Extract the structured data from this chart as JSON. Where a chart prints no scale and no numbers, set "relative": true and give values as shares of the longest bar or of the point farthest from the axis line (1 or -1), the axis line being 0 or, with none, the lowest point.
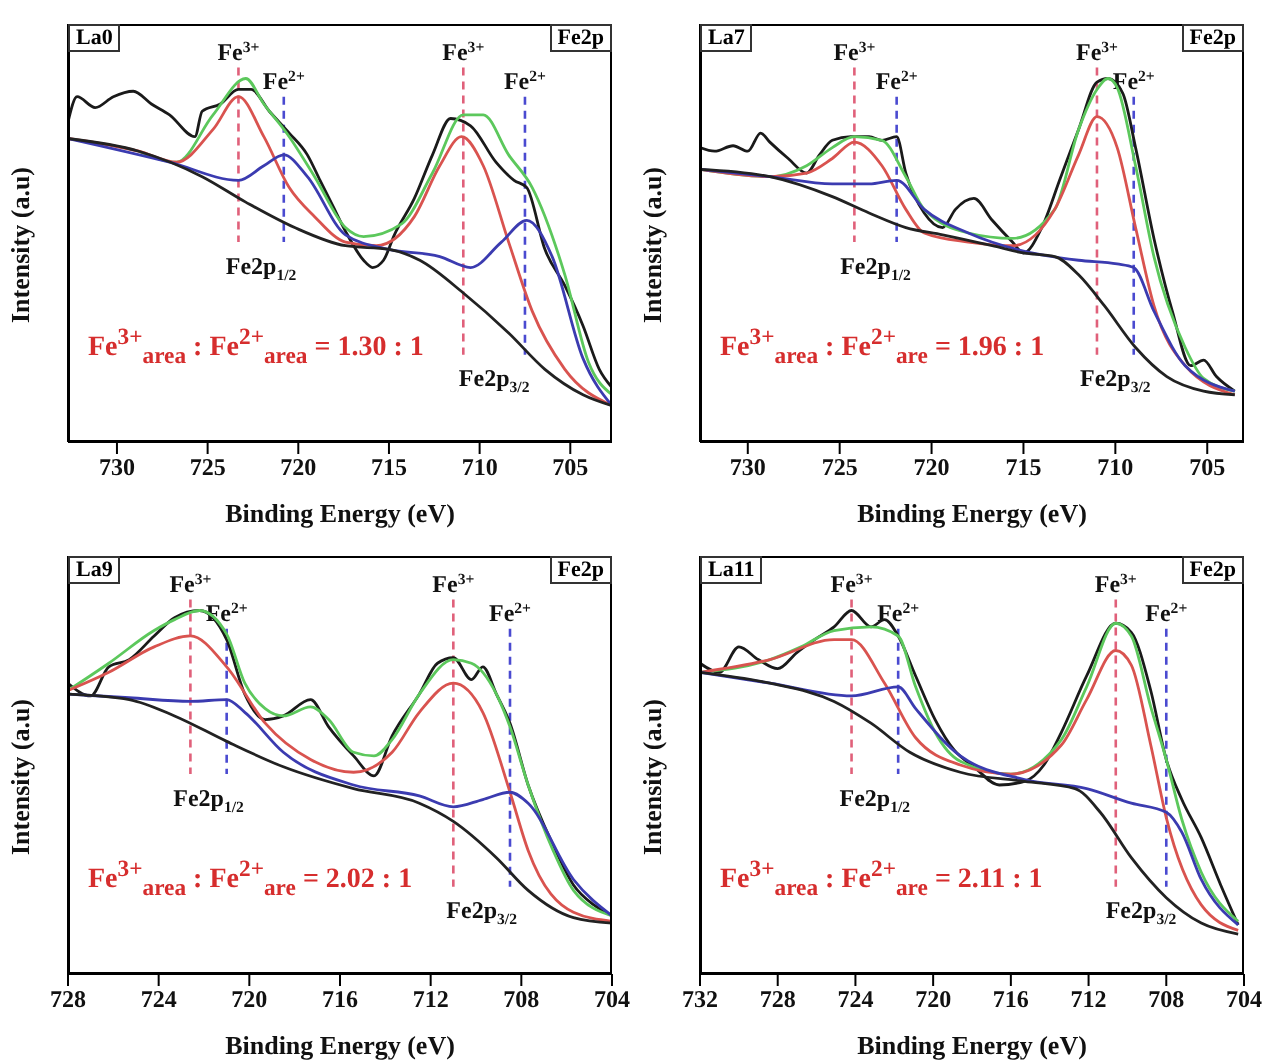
{
  "chart_data": [
    {
      "type": "line",
      "title": "La0",
      "subtitle": "Fe2p",
      "xlabel": "Binding Energy (eV)",
      "ylabel": "Intensity (a.u)",
      "relative": true,
      "xlim": [
        732.7,
        702.7
      ],
      "xticks": [
        730,
        725,
        720,
        715,
        710,
        705
      ],
      "series": [
        {
          "color": "#1a1a1a",
          "x": [
            732.7,
            732.2,
            731.2,
            730.2,
            729.1,
            728.1,
            727.1,
            725.7,
            725.3,
            724.3,
            723.3,
            722.6,
            721.6,
            720.5,
            719.5,
            718.8,
            718.1,
            717.4,
            716.4,
            715.9,
            715.3,
            714.7,
            713.6,
            712.6,
            711.6,
            710.5,
            709.1,
            708.1,
            707.4,
            706.4,
            705.3,
            704.3,
            703.4,
            702.7
          ],
          "values": [
            0.88,
            0.95,
            0.92,
            0.95,
            0.965,
            0.93,
            0.9,
            0.84,
            0.91,
            0.93,
            0.97,
            0.97,
            0.91,
            0.85,
            0.79,
            0.72,
            0.65,
            0.58,
            0.5,
            0.48,
            0.5,
            0.57,
            0.67,
            0.79,
            0.89,
            0.87,
            0.77,
            0.72,
            0.7,
            0.53,
            0.43,
            0.32,
            0.2,
            0.15
          ]
        },
        {
          "color": "#5cc85c",
          "x": [
            728.8,
            726.7,
            724.7,
            722.9,
            721.9,
            720.5,
            719.1,
            717.4,
            716.4,
            714.3,
            712.6,
            710.9,
            709.8,
            708.4,
            707.1,
            705.3,
            704.0,
            702.7
          ],
          "values": [
            0.8,
            0.77,
            0.9,
            1.0,
            0.93,
            0.84,
            0.73,
            0.59,
            0.565,
            0.6,
            0.74,
            0.9,
            0.9,
            0.79,
            0.7,
            0.46,
            0.22,
            0.13
          ]
        },
        {
          "color": "#d9534f",
          "x": [
            732.7,
            728.8,
            726.7,
            724.7,
            723.3,
            721.9,
            720.5,
            719.1,
            717.4,
            715.7,
            713.6,
            712.2,
            711.0,
            709.8,
            708.4,
            707.1,
            705.3,
            702.7
          ],
          "values": [
            0.835,
            0.8,
            0.77,
            0.86,
            0.95,
            0.84,
            0.7,
            0.62,
            0.55,
            0.54,
            0.62,
            0.76,
            0.84,
            0.76,
            0.55,
            0.36,
            0.2,
            0.1
          ]
        },
        {
          "color": "#3b3bb0",
          "x": [
            732.7,
            727.1,
            723.3,
            721.9,
            720.8,
            719.5,
            717.4,
            715.0,
            712.2,
            710.5,
            708.8,
            707.4,
            706.0,
            704.3,
            702.7
          ],
          "values": [
            0.835,
            0.77,
            0.72,
            0.76,
            0.79,
            0.73,
            0.57,
            0.53,
            0.51,
            0.48,
            0.55,
            0.61,
            0.51,
            0.23,
            0.1
          ]
        },
        {
          "color": "#222222",
          "x": [
            732.7,
            728.8,
            725.3,
            722.9,
            720.2,
            717.4,
            715.0,
            713.3,
            710.9,
            708.4,
            706.4,
            704.3,
            702.7
          ],
          "values": [
            0.835,
            0.8,
            0.73,
            0.66,
            0.59,
            0.54,
            0.53,
            0.5,
            0.41,
            0.3,
            0.2,
            0.13,
            0.1
          ]
        }
      ],
      "ref_lines": [
        {
          "axis": "x",
          "value": 723.3,
          "label": "Fe$^{3+}$",
          "color": "#e0607a",
          "line_style": "dashed"
        },
        {
          "axis": "x",
          "value": 720.8,
          "label": "Fe$^{2+}$",
          "color": "#4a4ad0",
          "line_style": "dashed"
        },
        {
          "axis": "x",
          "value": 710.9,
          "label": "Fe$^{3+}$",
          "color": "#e0607a",
          "line_style": "dashed"
        },
        {
          "axis": "x",
          "value": 707.5,
          "label": "Fe$^{2+}$",
          "color": "#4a4ad0",
          "line_style": "dashed"
        }
      ],
      "annotations": [
        "Fe$^{3+}$$_{area}$ : Fe$^{2+}$$_{area}$ = 1.30 : 1",
        "Fe2p$_{1/2}$",
        "Fe2p$_{3/2}$"
      ]
    },
    {
      "type": "line",
      "title": "La7",
      "subtitle": "Fe2p",
      "xlabel": "Binding Energy (eV)",
      "ylabel": "Intensity (a.u)",
      "relative": true,
      "xlim": [
        732.6,
        703.0
      ],
      "xticks": [
        730,
        725,
        720,
        715,
        710,
        705
      ],
      "series": [
        {
          "color": "#1a1a1a",
          "x": [
            732.6,
            731.8,
            730.8,
            730.0,
            729.3,
            728.8,
            727.8,
            726.8,
            726.1,
            725.4,
            724.4,
            723.4,
            722.7,
            721.9,
            721.4,
            720.4,
            719.4,
            718.7,
            717.7,
            716.7,
            715.6,
            715.0,
            714.0,
            713.0,
            712.0,
            711.0,
            710.4,
            709.6,
            708.9,
            707.9,
            706.9,
            705.9,
            705.2,
            704.5,
            703.5
          ],
          "values": [
            0.81,
            0.8,
            0.815,
            0.8,
            0.85,
            0.825,
            0.78,
            0.74,
            0.79,
            0.83,
            0.84,
            0.84,
            0.83,
            0.84,
            0.74,
            0.63,
            0.59,
            0.64,
            0.67,
            0.61,
            0.55,
            0.52,
            0.59,
            0.725,
            0.86,
            0.99,
            1.0,
            0.96,
            0.81,
            0.56,
            0.36,
            0.21,
            0.225,
            0.18,
            0.14
          ]
        },
        {
          "color": "#5cc85c",
          "x": [
            732.6,
            728.8,
            726.8,
            725.4,
            724.2,
            722.7,
            721.4,
            720.4,
            718.0,
            715.6,
            713.3,
            712.0,
            711.0,
            710.4,
            709.9,
            708.9,
            707.9,
            706.2,
            705.2,
            703.5
          ],
          "values": [
            0.75,
            0.73,
            0.76,
            0.81,
            0.84,
            0.83,
            0.73,
            0.64,
            0.575,
            0.56,
            0.64,
            0.86,
            0.97,
            1.0,
            0.975,
            0.76,
            0.51,
            0.26,
            0.175,
            0.14
          ]
        },
        {
          "color": "#d9534f",
          "x": [
            732.6,
            728.8,
            726.8,
            725.4,
            724.2,
            722.7,
            721.4,
            720.4,
            718.0,
            715.6,
            713.3,
            712.0,
            711.0,
            709.9,
            708.9,
            707.9,
            706.2,
            703.5
          ],
          "values": [
            0.75,
            0.73,
            0.74,
            0.78,
            0.825,
            0.76,
            0.64,
            0.575,
            0.55,
            0.54,
            0.64,
            0.79,
            0.895,
            0.81,
            0.59,
            0.375,
            0.21,
            0.13
          ]
        },
        {
          "color": "#3b3bb0",
          "x": [
            732.6,
            728.8,
            725.4,
            723.4,
            721.9,
            720.4,
            718.0,
            715.0,
            712.0,
            709.9,
            709.0,
            707.9,
            706.2,
            703.5
          ],
          "values": [
            0.75,
            0.73,
            0.71,
            0.71,
            0.72,
            0.64,
            0.575,
            0.525,
            0.5,
            0.49,
            0.48,
            0.36,
            0.21,
            0.14
          ]
        },
        {
          "color": "#222222",
          "x": [
            732.6,
            728.8,
            725.4,
            723.4,
            721.4,
            719.4,
            716.7,
            715.0,
            713.3,
            712.0,
            710.6,
            708.9,
            707.2,
            705.2,
            703.5
          ],
          "values": [
            0.75,
            0.73,
            0.675,
            0.63,
            0.59,
            0.57,
            0.54,
            0.52,
            0.51,
            0.46,
            0.375,
            0.26,
            0.18,
            0.14,
            0.13
          ]
        }
      ],
      "ref_lines": [
        {
          "axis": "x",
          "value": 724.2,
          "label": "Fe$^{3+}$",
          "color": "#e0607a",
          "line_style": "dashed"
        },
        {
          "axis": "x",
          "value": 721.9,
          "label": "Fe$^{2+}$",
          "color": "#4a4ad0",
          "line_style": "dashed"
        },
        {
          "axis": "x",
          "value": 711.0,
          "label": "Fe$^{3+}$",
          "color": "#e0607a",
          "line_style": "dashed"
        },
        {
          "axis": "x",
          "value": 709.0,
          "label": "Fe$^{2+}$",
          "color": "#4a4ad0",
          "line_style": "dashed"
        }
      ],
      "annotations": [
        "Fe$^{3+}$$_{area}$ : Fe$^{2+}$$_{are}$ = 1.96 : 1",
        "Fe2p$_{1/2}$",
        "Fe2p$_{3/2}$"
      ]
    },
    {
      "type": "line",
      "title": "La9",
      "subtitle": "Fe2p",
      "xlabel": "Binding Energy (eV)",
      "ylabel": "Intensity (a.u)",
      "relative": true,
      "xlim": [
        728,
        704
      ],
      "xticks": [
        728,
        724,
        720,
        716,
        712,
        708,
        704
      ],
      "series": [
        {
          "color": "#1a1a1a",
          "x": [
            728.0,
            727.0,
            726.2,
            725.3,
            724.2,
            723.3,
            722.2,
            721.0,
            720.2,
            719.3,
            718.5,
            717.3,
            716.5,
            715.4,
            714.5,
            713.7,
            712.5,
            711.7,
            711.0,
            710.2,
            709.7,
            709.1,
            708.5,
            707.7,
            706.6,
            705.7,
            704.8,
            704.0
          ],
          "values": [
            0.8,
            0.765,
            0.845,
            0.865,
            0.93,
            0.98,
            1.0,
            0.92,
            0.77,
            0.7,
            0.71,
            0.755,
            0.68,
            0.6,
            0.545,
            0.655,
            0.77,
            0.855,
            0.87,
            0.81,
            0.845,
            0.77,
            0.69,
            0.52,
            0.355,
            0.245,
            0.19,
            0.16
          ]
        },
        {
          "color": "#5cc85c",
          "x": [
            728.0,
            726.2,
            724.2,
            723.3,
            722.2,
            721.0,
            720.2,
            719.3,
            718.5,
            717.3,
            716.5,
            715.4,
            714.5,
            713.7,
            712.5,
            711.0,
            710.2,
            709.1,
            708.5,
            707.7,
            706.6,
            705.7,
            704.0
          ],
          "values": [
            0.78,
            0.855,
            0.945,
            0.975,
            1.0,
            0.935,
            0.8,
            0.73,
            0.71,
            0.735,
            0.7,
            0.61,
            0.6,
            0.645,
            0.77,
            0.865,
            0.855,
            0.77,
            0.68,
            0.52,
            0.34,
            0.23,
            0.16
          ]
        },
        {
          "color": "#d9534f",
          "x": [
            728.0,
            726.2,
            724.2,
            722.6,
            721.0,
            719.3,
            717.3,
            715.4,
            713.7,
            712.5,
            711.0,
            709.7,
            708.5,
            707.7,
            705.7,
            704.0
          ],
          "values": [
            0.78,
            0.83,
            0.9,
            0.93,
            0.845,
            0.69,
            0.59,
            0.555,
            0.61,
            0.72,
            0.8,
            0.72,
            0.5,
            0.34,
            0.17,
            0.145
          ]
        },
        {
          "color": "#3b3bb0",
          "x": [
            728.0,
            725.3,
            722.6,
            721.0,
            720.2,
            718.5,
            715.4,
            712.5,
            711.0,
            709.7,
            708.5,
            707.7,
            705.7,
            704.0
          ],
          "values": [
            0.77,
            0.76,
            0.75,
            0.755,
            0.72,
            0.61,
            0.52,
            0.49,
            0.46,
            0.48,
            0.5,
            0.47,
            0.26,
            0.16
          ]
        },
        {
          "color": "#222222",
          "x": [
            728.0,
            725.3,
            723.3,
            721.0,
            718.5,
            715.4,
            712.5,
            711.0,
            709.1,
            707.7,
            705.7,
            704.0
          ],
          "values": [
            0.77,
            0.755,
            0.71,
            0.64,
            0.57,
            0.51,
            0.47,
            0.42,
            0.32,
            0.23,
            0.155,
            0.14
          ]
        }
      ],
      "ref_lines": [
        {
          "axis": "x",
          "value": 722.6,
          "label": "Fe$^{3+}$",
          "color": "#e0607a",
          "line_style": "dashed"
        },
        {
          "axis": "x",
          "value": 721.0,
          "label": "Fe$^{2+}$",
          "color": "#4a4ad0",
          "line_style": "dashed"
        },
        {
          "axis": "x",
          "value": 711.0,
          "label": "Fe$^{3+}$",
          "color": "#e0607a",
          "line_style": "dashed"
        },
        {
          "axis": "x",
          "value": 708.5,
          "label": "Fe$^{2+}$",
          "color": "#4a4ad0",
          "line_style": "dashed"
        }
      ],
      "annotations": [
        "Fe$^{3+}$$_{area}$ : Fe$^{2+}$$_{are}$ = 2.02 : 1",
        "Fe2p$_{1/2}$",
        "Fe2p$_{3/2}$"
      ]
    },
    {
      "type": "line",
      "title": "La11",
      "subtitle": "Fe2p",
      "xlabel": "Binding Energy (eV)",
      "ylabel": "Intensity (a.u)",
      "relative": true,
      "xlim": [
        732,
        704
      ],
      "xticks": [
        732,
        728,
        724,
        720,
        716,
        712,
        708,
        704
      ],
      "series": [
        {
          "color": "#1a1a1a",
          "x": [
            732.0,
            731.0,
            730.0,
            729.0,
            728.0,
            727.0,
            726.1,
            725.1,
            724.2,
            723.2,
            722.5,
            721.8,
            720.9,
            719.9,
            718.9,
            717.9,
            716.6,
            715.3,
            714.3,
            713.4,
            712.1,
            710.6,
            709.8,
            708.8,
            708.0,
            707.2,
            706.2,
            705.2,
            704.3
          ],
          "values": [
            0.855,
            0.83,
            0.9,
            0.865,
            0.84,
            0.885,
            0.92,
            0.955,
            1.0,
            0.955,
            0.975,
            0.93,
            0.82,
            0.7,
            0.615,
            0.57,
            0.52,
            0.53,
            0.575,
            0.665,
            0.82,
            0.965,
            0.94,
            0.78,
            0.59,
            0.48,
            0.375,
            0.245,
            0.135
          ]
        },
        {
          "color": "#5cc85c",
          "x": [
            732.0,
            728.4,
            726.8,
            725.1,
            723.2,
            721.8,
            720.9,
            719.9,
            718.6,
            716.0,
            713.4,
            712.1,
            710.6,
            709.8,
            708.8,
            708.0,
            707.2,
            706.2,
            704.3
          ],
          "values": [
            0.83,
            0.865,
            0.9,
            0.945,
            0.955,
            0.93,
            0.79,
            0.665,
            0.585,
            0.55,
            0.645,
            0.79,
            0.965,
            0.93,
            0.735,
            0.59,
            0.425,
            0.28,
            0.145
          ]
        },
        {
          "color": "#d9534f",
          "x": [
            732.0,
            728.4,
            725.1,
            724.2,
            722.5,
            720.9,
            718.6,
            716.0,
            713.4,
            712.1,
            710.6,
            709.8,
            708.8,
            708.0,
            706.2,
            704.3
          ],
          "values": [
            0.83,
            0.865,
            0.92,
            0.92,
            0.8,
            0.65,
            0.575,
            0.55,
            0.63,
            0.755,
            0.89,
            0.85,
            0.63,
            0.43,
            0.19,
            0.12
          ]
        },
        {
          "color": "#3b3bb0",
          "x": [
            732.0,
            728.4,
            724.2,
            721.8,
            720.9,
            718.6,
            715.3,
            712.1,
            709.8,
            708.0,
            707.2,
            706.2,
            704.3
          ],
          "values": [
            0.83,
            0.8,
            0.765,
            0.79,
            0.73,
            0.6,
            0.535,
            0.51,
            0.47,
            0.445,
            0.39,
            0.26,
            0.135
          ]
        },
        {
          "color": "#222222",
          "x": [
            732.0,
            728.4,
            725.1,
            723.2,
            721.2,
            718.6,
            715.3,
            712.7,
            711.4,
            709.8,
            708.0,
            706.2,
            704.3
          ],
          "values": [
            0.83,
            0.8,
            0.75,
            0.69,
            0.61,
            0.555,
            0.53,
            0.51,
            0.445,
            0.32,
            0.21,
            0.14,
            0.11
          ]
        }
      ],
      "ref_lines": [
        {
          "axis": "x",
          "value": 724.2,
          "label": "Fe$^{3+}$",
          "color": "#e0607a",
          "line_style": "dashed"
        },
        {
          "axis": "x",
          "value": 721.8,
          "label": "Fe$^{2+}$",
          "color": "#4a4ad0",
          "line_style": "dashed"
        },
        {
          "axis": "x",
          "value": 710.6,
          "label": "Fe$^{3+}$",
          "color": "#e0607a",
          "line_style": "dashed"
        },
        {
          "axis": "x",
          "value": 708.0,
          "label": "Fe$^{2+}$",
          "color": "#4a4ad0",
          "line_style": "dashed"
        }
      ],
      "annotations": [
        "Fe$^{3+}$$_{area}$ : Fe$^{2+}$$_{are}$ = 2.11 : 1",
        "Fe2p$_{1/2}$",
        "Fe2p$_{3/2}$"
      ]
    }
  ]
}
